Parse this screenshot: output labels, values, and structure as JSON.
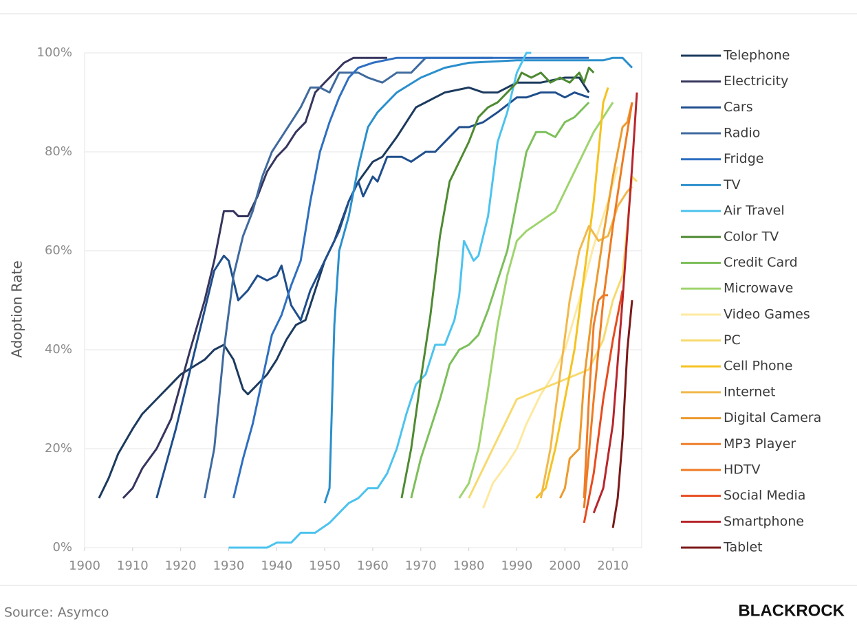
{
  "chart_data": {
    "type": "line",
    "y_label": "Adoption Rate",
    "source": "Source: Asymco",
    "logo": "BLACKROCK",
    "xlim": [
      1900,
      2016
    ],
    "xticks": [
      1900,
      1910,
      1920,
      1930,
      1940,
      1950,
      1960,
      1970,
      1980,
      1990,
      2000,
      2010
    ],
    "ylim": [
      0,
      100
    ],
    "yticks": [
      {
        "value": 0,
        "label": "0%"
      },
      {
        "value": 20,
        "label": "20%"
      },
      {
        "value": 40,
        "label": "40%"
      },
      {
        "value": 60,
        "label": "60%"
      },
      {
        "value": 80,
        "label": "80%"
      },
      {
        "value": 100,
        "label": "100%"
      }
    ],
    "grid": true,
    "legend": "right",
    "series": [
      {
        "name": "Telephone",
        "color": "#1c3a5e",
        "x": [
          1903,
          1905,
          1907,
          1910,
          1912,
          1915,
          1918,
          1920,
          1925,
          1927,
          1929,
          1931,
          1933,
          1934,
          1936,
          1938,
          1940,
          1942,
          1944,
          1946,
          1948,
          1950,
          1952,
          1955,
          1957,
          1960,
          1962,
          1965,
          1967,
          1969,
          1971,
          1975,
          1980,
          1983,
          1986,
          1990,
          1995,
          2000,
          2003,
          2005
        ],
        "values": [
          10,
          14,
          19,
          24,
          27,
          30,
          33,
          35,
          38,
          40,
          41,
          38,
          32,
          31,
          33,
          35,
          38,
          42,
          45,
          46,
          52,
          58,
          62,
          70,
          74,
          78,
          79,
          83,
          86,
          89,
          90,
          92,
          93,
          92,
          92,
          94,
          94,
          95,
          95,
          92
        ]
      },
      {
        "name": "Electricity",
        "color": "#35355e",
        "x": [
          1908,
          1910,
          1912,
          1915,
          1918,
          1920,
          1922,
          1925,
          1927,
          1929,
          1931,
          1932,
          1934,
          1936,
          1938,
          1940,
          1942,
          1944,
          1946,
          1948,
          1950,
          1952,
          1954,
          1956,
          1963
        ],
        "values": [
          10,
          12,
          16,
          20,
          26,
          33,
          40,
          50,
          58,
          68,
          68,
          67,
          67,
          71,
          76,
          79,
          81,
          84,
          86,
          92,
          94,
          96,
          98,
          99,
          99
        ]
      },
      {
        "name": "Cars",
        "color": "#1f4e8c",
        "x": [
          1915,
          1917,
          1919,
          1921,
          1923,
          1925,
          1927,
          1929,
          1930,
          1932,
          1934,
          1936,
          1938,
          1940,
          1941,
          1943,
          1945,
          1947,
          1949,
          1951,
          1953,
          1955,
          1957,
          1958,
          1960,
          1961,
          1963,
          1966,
          1968,
          1971,
          1973,
          1975,
          1978,
          1980,
          1983,
          1986,
          1990,
          1992,
          1995,
          1998,
          2000,
          2002,
          2005
        ],
        "values": [
          10,
          17,
          24,
          32,
          40,
          48,
          56,
          59,
          58,
          50,
          52,
          55,
          54,
          55,
          57,
          49,
          46,
          52,
          56,
          60,
          64,
          70,
          74,
          71,
          75,
          74,
          79,
          79,
          78,
          80,
          80,
          82,
          85,
          85,
          86,
          88,
          91,
          91,
          92,
          92,
          91,
          92,
          91
        ]
      },
      {
        "name": "Radio",
        "color": "#3f6a9e",
        "x": [
          1925,
          1927,
          1929,
          1931,
          1933,
          1935,
          1937,
          1939,
          1941,
          1943,
          1945,
          1947,
          1949,
          1951,
          1953,
          1957,
          1959,
          1962,
          1965,
          1968,
          1971,
          1985
        ],
        "values": [
          10,
          20,
          40,
          55,
          63,
          68,
          75,
          80,
          83,
          86,
          89,
          93,
          93,
          92,
          96,
          96,
          95,
          94,
          96,
          96,
          99,
          99
        ]
      },
      {
        "name": "Fridge",
        "color": "#2e6fc0",
        "x": [
          1931,
          1933,
          1935,
          1937,
          1939,
          1941,
          1943,
          1945,
          1947,
          1949,
          1951,
          1953,
          1955,
          1957,
          1960,
          1965,
          2005
        ],
        "values": [
          10,
          18,
          25,
          34,
          43,
          47,
          53,
          58,
          70,
          80,
          86,
          91,
          95,
          97,
          98,
          99,
          99
        ]
      },
      {
        "name": "TV",
        "color": "#2a8fcc",
        "x": [
          1950,
          1951,
          1952,
          1953,
          1955,
          1957,
          1959,
          1961,
          1963,
          1965,
          1970,
          1975,
          1980,
          1990,
          2000,
          2008,
          2010,
          2012,
          2014
        ],
        "values": [
          9,
          12,
          45,
          60,
          67,
          77,
          85,
          88,
          90,
          92,
          95,
          97,
          98,
          98.5,
          98.5,
          98.5,
          99,
          99,
          97
        ]
      },
      {
        "name": "Air Travel",
        "color": "#4cc3ee",
        "x": [
          1930,
          1935,
          1938,
          1940,
          1943,
          1945,
          1948,
          1951,
          1953,
          1955,
          1957,
          1959,
          1961,
          1963,
          1965,
          1967,
          1969,
          1971,
          1973,
          1975,
          1977,
          1978,
          1979,
          1981,
          1982,
          1984,
          1986,
          1988,
          1990,
          1992,
          1993
        ],
        "values": [
          0,
          0,
          0,
          1,
          1,
          3,
          3,
          5,
          7,
          9,
          10,
          12,
          12,
          15,
          20,
          27,
          33,
          35,
          41,
          41,
          46,
          51,
          62,
          58,
          59,
          67,
          82,
          88,
          96,
          100,
          100
        ]
      },
      {
        "name": "Color TV",
        "color": "#4e8a32",
        "x": [
          1966,
          1968,
          1970,
          1972,
          1974,
          1976,
          1978,
          1980,
          1982,
          1984,
          1986,
          1988,
          1990,
          1991,
          1993,
          1995,
          1997,
          1999,
          2001,
          2003,
          2004,
          2005,
          2006
        ],
        "values": [
          10,
          20,
          34,
          47,
          63,
          74,
          78,
          82,
          87,
          89,
          90,
          92,
          94,
          96,
          95,
          96,
          94,
          95,
          94,
          96,
          94,
          97,
          96
        ]
      },
      {
        "name": "Credit Card",
        "color": "#7cbf5a",
        "x": [
          1968,
          1970,
          1972,
          1974,
          1976,
          1978,
          1980,
          1982,
          1984,
          1986,
          1988,
          1990,
          1992,
          1994,
          1996,
          1998,
          2000,
          2002,
          2005
        ],
        "values": [
          10,
          18,
          24,
          30,
          37,
          40,
          41,
          43,
          48,
          54,
          60,
          70,
          80,
          84,
          84,
          83,
          86,
          87,
          90
        ]
      },
      {
        "name": "Microwave",
        "color": "#9fd46e",
        "x": [
          1978,
          1980,
          1982,
          1984,
          1986,
          1988,
          1990,
          1992,
          1995,
          1998,
          2002,
          2006,
          2010
        ],
        "values": [
          10,
          13,
          20,
          32,
          45,
          55,
          62,
          64,
          66,
          68,
          76,
          84,
          90
        ]
      },
      {
        "name": "Video Games",
        "color": "#fde9a0",
        "x": [
          1983,
          1985,
          1988,
          1990,
          1992,
          1995,
          1997,
          2000,
          2003,
          2006,
          2009,
          2011
        ],
        "values": [
          8,
          13,
          17,
          20,
          25,
          31,
          34,
          40,
          50,
          61,
          70,
          77
        ]
      },
      {
        "name": "PC",
        "color": "#f7da6e",
        "x": [
          1980,
          1985,
          1990,
          1995,
          2000,
          2005,
          2008,
          2010,
          2012,
          2014,
          2015
        ],
        "values": [
          10,
          20,
          30,
          32,
          34,
          36,
          42,
          50,
          55,
          75,
          74
        ]
      },
      {
        "name": "Cell Phone",
        "color": "#f5c320",
        "x": [
          1994,
          1996,
          1998,
          2000,
          2002,
          2004,
          2006,
          2007,
          2008,
          2009
        ],
        "values": [
          10,
          12,
          20,
          30,
          40,
          55,
          70,
          80,
          90,
          93
        ]
      },
      {
        "name": "Internet",
        "color": "#f2b84a",
        "x": [
          1995,
          1997,
          1999,
          2001,
          2003,
          2005,
          2007,
          2009,
          2011,
          2013,
          2014
        ],
        "values": [
          10,
          20,
          35,
          50,
          60,
          65,
          62,
          63,
          69,
          72,
          73
        ]
      },
      {
        "name": "Digital Camera",
        "color": "#ec9a2e",
        "x": [
          1999,
          2000,
          2001,
          2003,
          2004,
          2006,
          2008,
          2010,
          2012,
          2013,
          2014
        ],
        "values": [
          10,
          12,
          18,
          20,
          34,
          50,
          63,
          75,
          85,
          86,
          90
        ]
      },
      {
        "name": "MP3 Player",
        "color": "#ee7e2a",
        "x": [
          2004,
          2005,
          2006,
          2007,
          2008,
          2009
        ],
        "values": [
          10,
          30,
          45,
          50,
          51,
          51
        ]
      },
      {
        "name": "HDTV",
        "color": "#ee7b22",
        "x": [
          2004,
          2006,
          2008,
          2010,
          2012,
          2014
        ],
        "values": [
          8,
          30,
          50,
          65,
          78,
          90
        ]
      },
      {
        "name": "Social Media",
        "color": "#e84a1e",
        "x": [
          2004,
          2006,
          2008,
          2010,
          2012
        ],
        "values": [
          5,
          15,
          30,
          42,
          52
        ]
      },
      {
        "name": "Smartphone",
        "color": "#b8262c",
        "x": [
          2006,
          2008,
          2010,
          2012,
          2014,
          2015
        ],
        "values": [
          7,
          12,
          25,
          50,
          77,
          92
        ]
      },
      {
        "name": "Tablet",
        "color": "#7a1a1a",
        "x": [
          2010,
          2011,
          2012,
          2013,
          2014
        ],
        "values": [
          4,
          10,
          22,
          40,
          50
        ]
      }
    ]
  }
}
